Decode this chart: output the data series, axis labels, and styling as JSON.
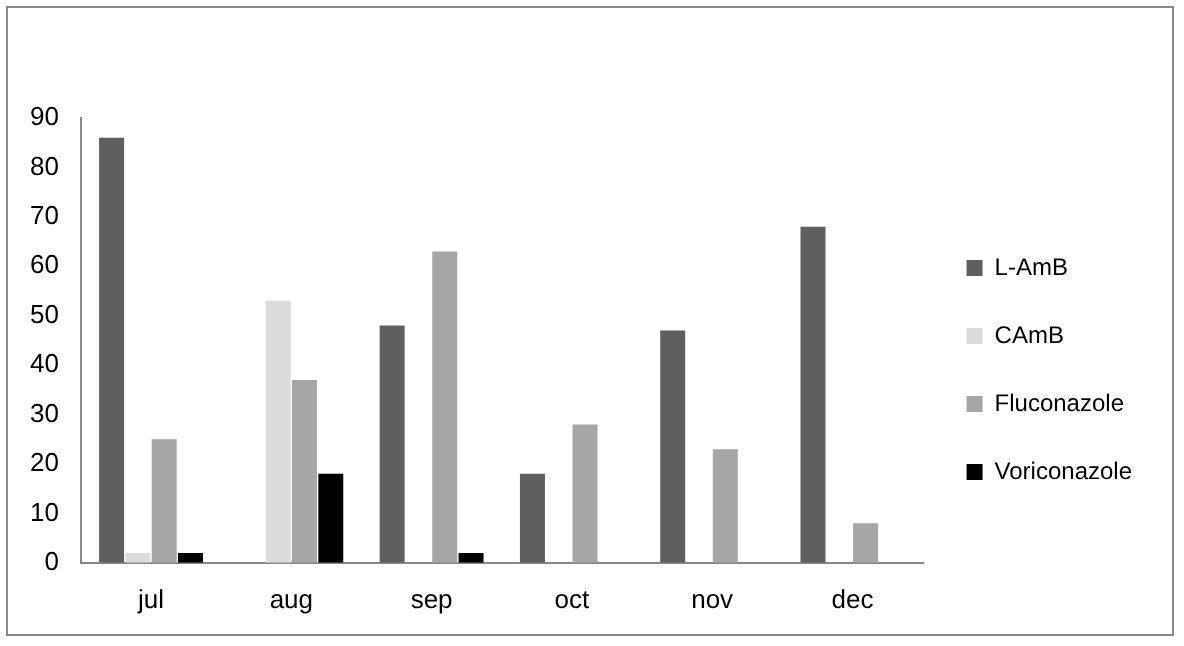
{
  "chart_data": {
    "type": "bar",
    "categories": [
      "jul",
      "aug",
      "sep",
      "oct",
      "nov",
      "dec"
    ],
    "series": [
      {
        "name": "L-AmB",
        "color": "#5f5f5f",
        "values": [
          86,
          0,
          48,
          18,
          47,
          68
        ]
      },
      {
        "name": "CAmB",
        "color": "#dcdcdc",
        "values": [
          2,
          53,
          0,
          0,
          0,
          0
        ]
      },
      {
        "name": "Fluconazole",
        "color": "#a6a6a6",
        "values": [
          25,
          37,
          63,
          28,
          23,
          8
        ]
      },
      {
        "name": "Voriconazole",
        "color": "#000000",
        "values": [
          2,
          18,
          2,
          0,
          0,
          0
        ]
      }
    ],
    "ylim": [
      0,
      90
    ],
    "yticks": [
      0,
      10,
      20,
      30,
      40,
      50,
      60,
      70,
      80,
      90
    ],
    "grid": false,
    "legend": "right"
  }
}
